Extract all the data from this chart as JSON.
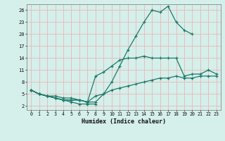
{
  "xlabel": "Humidex (Indice chaleur)",
  "bg_color": "#d5efea",
  "grid_color": "#e8b8b8",
  "line_color": "#1a7a6a",
  "xlim": [
    -0.5,
    23.5
  ],
  "ylim": [
    1.0,
    27.5
  ],
  "xticks": [
    0,
    1,
    2,
    3,
    4,
    5,
    6,
    7,
    8,
    9,
    10,
    11,
    12,
    13,
    14,
    15,
    16,
    17,
    18,
    19,
    20,
    21,
    22,
    23
  ],
  "yticks": [
    2,
    5,
    8,
    11,
    14,
    17,
    20,
    23,
    26
  ],
  "lines": [
    [
      0,
      1,
      2,
      3,
      4,
      5,
      6,
      7,
      8,
      9,
      10,
      11,
      12,
      13,
      14,
      15,
      16,
      17,
      18,
      19,
      20
    ],
    [
      6,
      5,
      4.5,
      4.5,
      4,
      4,
      3.5,
      3,
      3,
      5,
      8,
      12,
      16,
      19.5,
      23,
      26,
      25.5,
      27,
      23,
      21,
      20
    ],
    [
      0,
      1,
      2,
      3,
      4,
      5,
      6,
      7,
      8,
      9,
      10,
      11,
      12,
      13,
      14,
      15,
      16,
      17,
      18,
      19,
      20,
      21,
      22,
      23
    ],
    [
      6,
      5,
      4.5,
      4,
      3.5,
      3.5,
      3.5,
      3,
      9.5,
      10.5,
      12,
      13.5,
      14,
      14,
      14.5,
      14,
      14,
      14,
      14,
      9.5,
      10,
      10,
      11,
      10
    ],
    [
      0,
      1,
      2,
      3,
      4,
      5,
      6,
      7,
      8,
      9,
      10,
      11,
      12,
      13,
      14,
      15,
      16,
      17,
      18,
      19,
      20,
      21,
      22,
      23
    ],
    [
      6,
      5,
      4.5,
      4,
      3.5,
      3.5,
      3.5,
      3,
      4.5,
      5,
      6,
      6.5,
      7,
      7.5,
      8,
      8.5,
      9,
      9,
      9.5,
      9,
      9,
      9.5,
      9.5,
      9.5
    ],
    [
      0,
      1,
      2,
      3,
      4,
      5,
      6,
      7,
      8
    ],
    [
      6,
      5,
      4.5,
      4,
      3.5,
      3,
      2.5,
      2.5,
      2.5
    ]
  ]
}
